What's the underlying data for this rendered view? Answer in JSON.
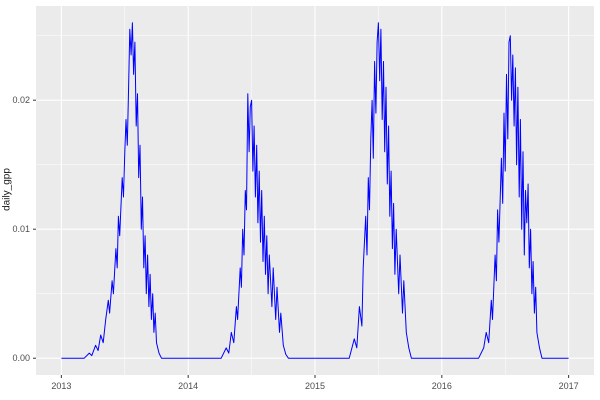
{
  "chart_data": {
    "type": "line",
    "title": "",
    "xlabel": "",
    "ylabel": "daily_gpp",
    "legend": "none",
    "grid": true,
    "panel_background": "#EBEBEB",
    "grid_color": "#FFFFFF",
    "line_color": "#0000FF",
    "tick_label_color": "#4D4D4D",
    "tick_mark_color": "#333333",
    "x_ticks": [
      2013,
      2014,
      2015,
      2016,
      2017
    ],
    "x_tick_labels": [
      "2013",
      "2014",
      "2015",
      "2016",
      "2017"
    ],
    "x_minor_ticks": [
      2013.5,
      2014.5,
      2015.5,
      2016.5
    ],
    "y_ticks": [
      0,
      0.01,
      0.02
    ],
    "y_tick_labels": [
      "0.00",
      "0.01",
      "0.02"
    ],
    "y_minor_ticks": [
      0.005,
      0.015,
      0.025
    ],
    "xlim": [
      2012.8,
      2017.2
    ],
    "ylim": [
      -0.0013,
      0.0273
    ],
    "series": [
      {
        "name": "daily_gpp",
        "points": [
          [
            2013.0,
            0
          ],
          [
            2013.18,
            0
          ],
          [
            2013.22,
            0.0004
          ],
          [
            2013.24,
            0.0002
          ],
          [
            2013.27,
            0.001
          ],
          [
            2013.29,
            0.0006
          ],
          [
            2013.31,
            0.0018
          ],
          [
            2013.33,
            0.0012
          ],
          [
            2013.35,
            0.003
          ],
          [
            2013.37,
            0.0045
          ],
          [
            2013.38,
            0.0035
          ],
          [
            2013.4,
            0.006
          ],
          [
            2013.41,
            0.005
          ],
          [
            2013.43,
            0.0085
          ],
          [
            2013.44,
            0.007
          ],
          [
            2013.45,
            0.011
          ],
          [
            2013.46,
            0.0095
          ],
          [
            2013.48,
            0.014
          ],
          [
            2013.49,
            0.0125
          ],
          [
            2013.5,
            0.016
          ],
          [
            2013.51,
            0.0185
          ],
          [
            2013.52,
            0.0165
          ],
          [
            2013.53,
            0.021
          ],
          [
            2013.54,
            0.0255
          ],
          [
            2013.55,
            0.0235
          ],
          [
            2013.56,
            0.026
          ],
          [
            2013.57,
            0.022
          ],
          [
            2013.58,
            0.0245
          ],
          [
            2013.59,
            0.018
          ],
          [
            2013.6,
            0.0205
          ],
          [
            2013.61,
            0.014
          ],
          [
            2013.62,
            0.0165
          ],
          [
            2013.63,
            0.01
          ],
          [
            2013.64,
            0.0125
          ],
          [
            2013.65,
            0.007
          ],
          [
            2013.66,
            0.0095
          ],
          [
            2013.67,
            0.005
          ],
          [
            2013.68,
            0.008
          ],
          [
            2013.69,
            0.004
          ],
          [
            2013.7,
            0.0065
          ],
          [
            2013.71,
            0.003
          ],
          [
            2013.72,
            0.005
          ],
          [
            2013.73,
            0.002
          ],
          [
            2013.74,
            0.0035
          ],
          [
            2013.75,
            0.0012
          ],
          [
            2013.77,
            0.0004
          ],
          [
            2013.79,
            0
          ],
          [
            2014.26,
            0
          ],
          [
            2014.3,
            0.0008
          ],
          [
            2014.32,
            0.0004
          ],
          [
            2014.34,
            0.002
          ],
          [
            2014.36,
            0.0012
          ],
          [
            2014.38,
            0.004
          ],
          [
            2014.39,
            0.003
          ],
          [
            2014.41,
            0.007
          ],
          [
            2014.42,
            0.0055
          ],
          [
            2014.43,
            0.01
          ],
          [
            2014.44,
            0.008
          ],
          [
            2014.45,
            0.013
          ],
          [
            2014.46,
            0.0115
          ],
          [
            2014.47,
            0.0205
          ],
          [
            2014.48,
            0.016
          ],
          [
            2014.49,
            0.0195
          ],
          [
            2014.5,
            0.02
          ],
          [
            2014.51,
            0.0145
          ],
          [
            2014.52,
            0.018
          ],
          [
            2014.53,
            0.0125
          ],
          [
            2014.54,
            0.0165
          ],
          [
            2014.55,
            0.0105
          ],
          [
            2014.56,
            0.0145
          ],
          [
            2014.57,
            0.009
          ],
          [
            2014.58,
            0.013
          ],
          [
            2014.59,
            0.0075
          ],
          [
            2014.6,
            0.011
          ],
          [
            2014.61,
            0.0065
          ],
          [
            2014.62,
            0.0095
          ],
          [
            2014.63,
            0.005
          ],
          [
            2014.64,
            0.008
          ],
          [
            2014.66,
            0.004
          ],
          [
            2014.67,
            0.007
          ],
          [
            2014.69,
            0.003
          ],
          [
            2014.7,
            0.0055
          ],
          [
            2014.72,
            0.002
          ],
          [
            2014.73,
            0.0035
          ],
          [
            2014.75,
            0.001
          ],
          [
            2014.77,
            0.0003
          ],
          [
            2014.79,
            0
          ],
          [
            2015.27,
            0
          ],
          [
            2015.31,
            0.0015
          ],
          [
            2015.33,
            0.0008
          ],
          [
            2015.35,
            0.004
          ],
          [
            2015.37,
            0.0025
          ],
          [
            2015.38,
            0.007
          ],
          [
            2015.4,
            0.011
          ],
          [
            2015.41,
            0.008
          ],
          [
            2015.42,
            0.014
          ],
          [
            2015.43,
            0.0115
          ],
          [
            2015.44,
            0.017
          ],
          [
            2015.45,
            0.02
          ],
          [
            2015.46,
            0.0155
          ],
          [
            2015.47,
            0.023
          ],
          [
            2015.48,
            0.019
          ],
          [
            2015.49,
            0.0245
          ],
          [
            2015.5,
            0.026
          ],
          [
            2015.51,
            0.0215
          ],
          [
            2015.52,
            0.0255
          ],
          [
            2015.53,
            0.0185
          ],
          [
            2015.54,
            0.023
          ],
          [
            2015.55,
            0.016
          ],
          [
            2015.56,
            0.021
          ],
          [
            2015.57,
            0.0135
          ],
          [
            2015.58,
            0.018
          ],
          [
            2015.59,
            0.011
          ],
          [
            2015.6,
            0.0145
          ],
          [
            2015.61,
            0.0085
          ],
          [
            2015.62,
            0.012
          ],
          [
            2015.63,
            0.0065
          ],
          [
            2015.64,
            0.01
          ],
          [
            2015.66,
            0.005
          ],
          [
            2015.67,
            0.008
          ],
          [
            2015.69,
            0.0035
          ],
          [
            2015.7,
            0.006
          ],
          [
            2015.72,
            0.002
          ],
          [
            2015.74,
            0.0008
          ],
          [
            2015.76,
            0
          ],
          [
            2016.29,
            0
          ],
          [
            2016.33,
            0.0008
          ],
          [
            2016.35,
            0.002
          ],
          [
            2016.37,
            0.0012
          ],
          [
            2016.39,
            0.0045
          ],
          [
            2016.4,
            0.003
          ],
          [
            2016.42,
            0.008
          ],
          [
            2016.43,
            0.006
          ],
          [
            2016.44,
            0.0115
          ],
          [
            2016.45,
            0.009
          ],
          [
            2016.47,
            0.0155
          ],
          [
            2016.48,
            0.012
          ],
          [
            2016.49,
            0.019
          ],
          [
            2016.5,
            0.0145
          ],
          [
            2016.51,
            0.022
          ],
          [
            2016.52,
            0.017
          ],
          [
            2016.53,
            0.0245
          ],
          [
            2016.54,
            0.025
          ],
          [
            2016.55,
            0.02
          ],
          [
            2016.56,
            0.0235
          ],
          [
            2016.57,
            0.018
          ],
          [
            2016.58,
            0.0225
          ],
          [
            2016.59,
            0.015
          ],
          [
            2016.6,
            0.021
          ],
          [
            2016.61,
            0.0125
          ],
          [
            2016.62,
            0.0185
          ],
          [
            2016.63,
            0.01
          ],
          [
            2016.64,
            0.016
          ],
          [
            2016.65,
            0.008
          ],
          [
            2016.66,
            0.013
          ],
          [
            2016.67,
            0.0105
          ],
          [
            2016.68,
            0.0135
          ],
          [
            2016.69,
            0.007
          ],
          [
            2016.7,
            0.01
          ],
          [
            2016.71,
            0.005
          ],
          [
            2016.72,
            0.0075
          ],
          [
            2016.73,
            0.0035
          ],
          [
            2016.74,
            0.0055
          ],
          [
            2016.75,
            0.002
          ],
          [
            2016.77,
            0.0008
          ],
          [
            2016.79,
            0
          ],
          [
            2017.0,
            0
          ]
        ]
      }
    ]
  }
}
